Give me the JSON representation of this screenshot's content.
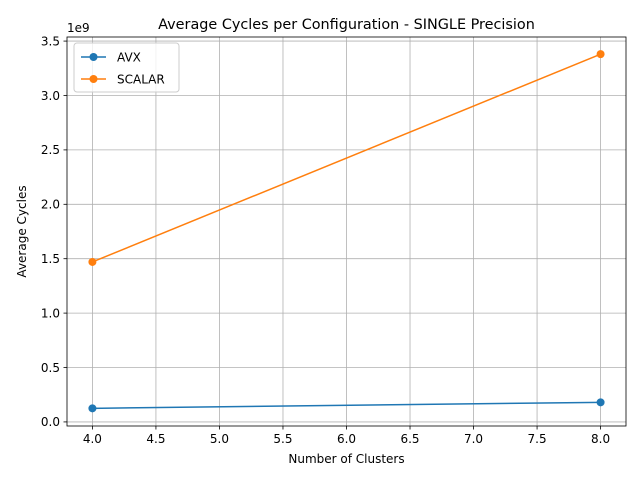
{
  "chart_data": {
    "type": "line",
    "title": "Average Cycles per Configuration - SINGLE Precision",
    "xlabel": "Number of Clusters",
    "ylabel": "Average Cycles",
    "y_multiplier_label": "1e9",
    "xlim": [
      3.8,
      8.2
    ],
    "ylim": [
      -0.0375,
      3.5375
    ],
    "x_ticks": [
      4.0,
      4.5,
      5.0,
      5.5,
      6.0,
      6.5,
      7.0,
      7.5,
      8.0
    ],
    "x_tick_labels": [
      "4.0",
      "4.5",
      "5.0",
      "5.5",
      "6.0",
      "6.5",
      "7.0",
      "7.5",
      "8.0"
    ],
    "y_ticks": [
      0.0,
      0.5,
      1.0,
      1.5,
      2.0,
      2.5,
      3.0,
      3.5
    ],
    "y_tick_labels": [
      "0.0",
      "0.5",
      "1.0",
      "1.5",
      "2.0",
      "2.5",
      "3.0",
      "3.5"
    ],
    "grid": true,
    "legend_position": "upper-left",
    "series": [
      {
        "name": "AVX",
        "color": "#1f77b4",
        "x": [
          4,
          8
        ],
        "y": [
          0.125,
          0.18
        ]
      },
      {
        "name": "SCALAR",
        "color": "#ff7f0e",
        "x": [
          4,
          8
        ],
        "y": [
          1.47,
          3.38
        ]
      }
    ]
  }
}
